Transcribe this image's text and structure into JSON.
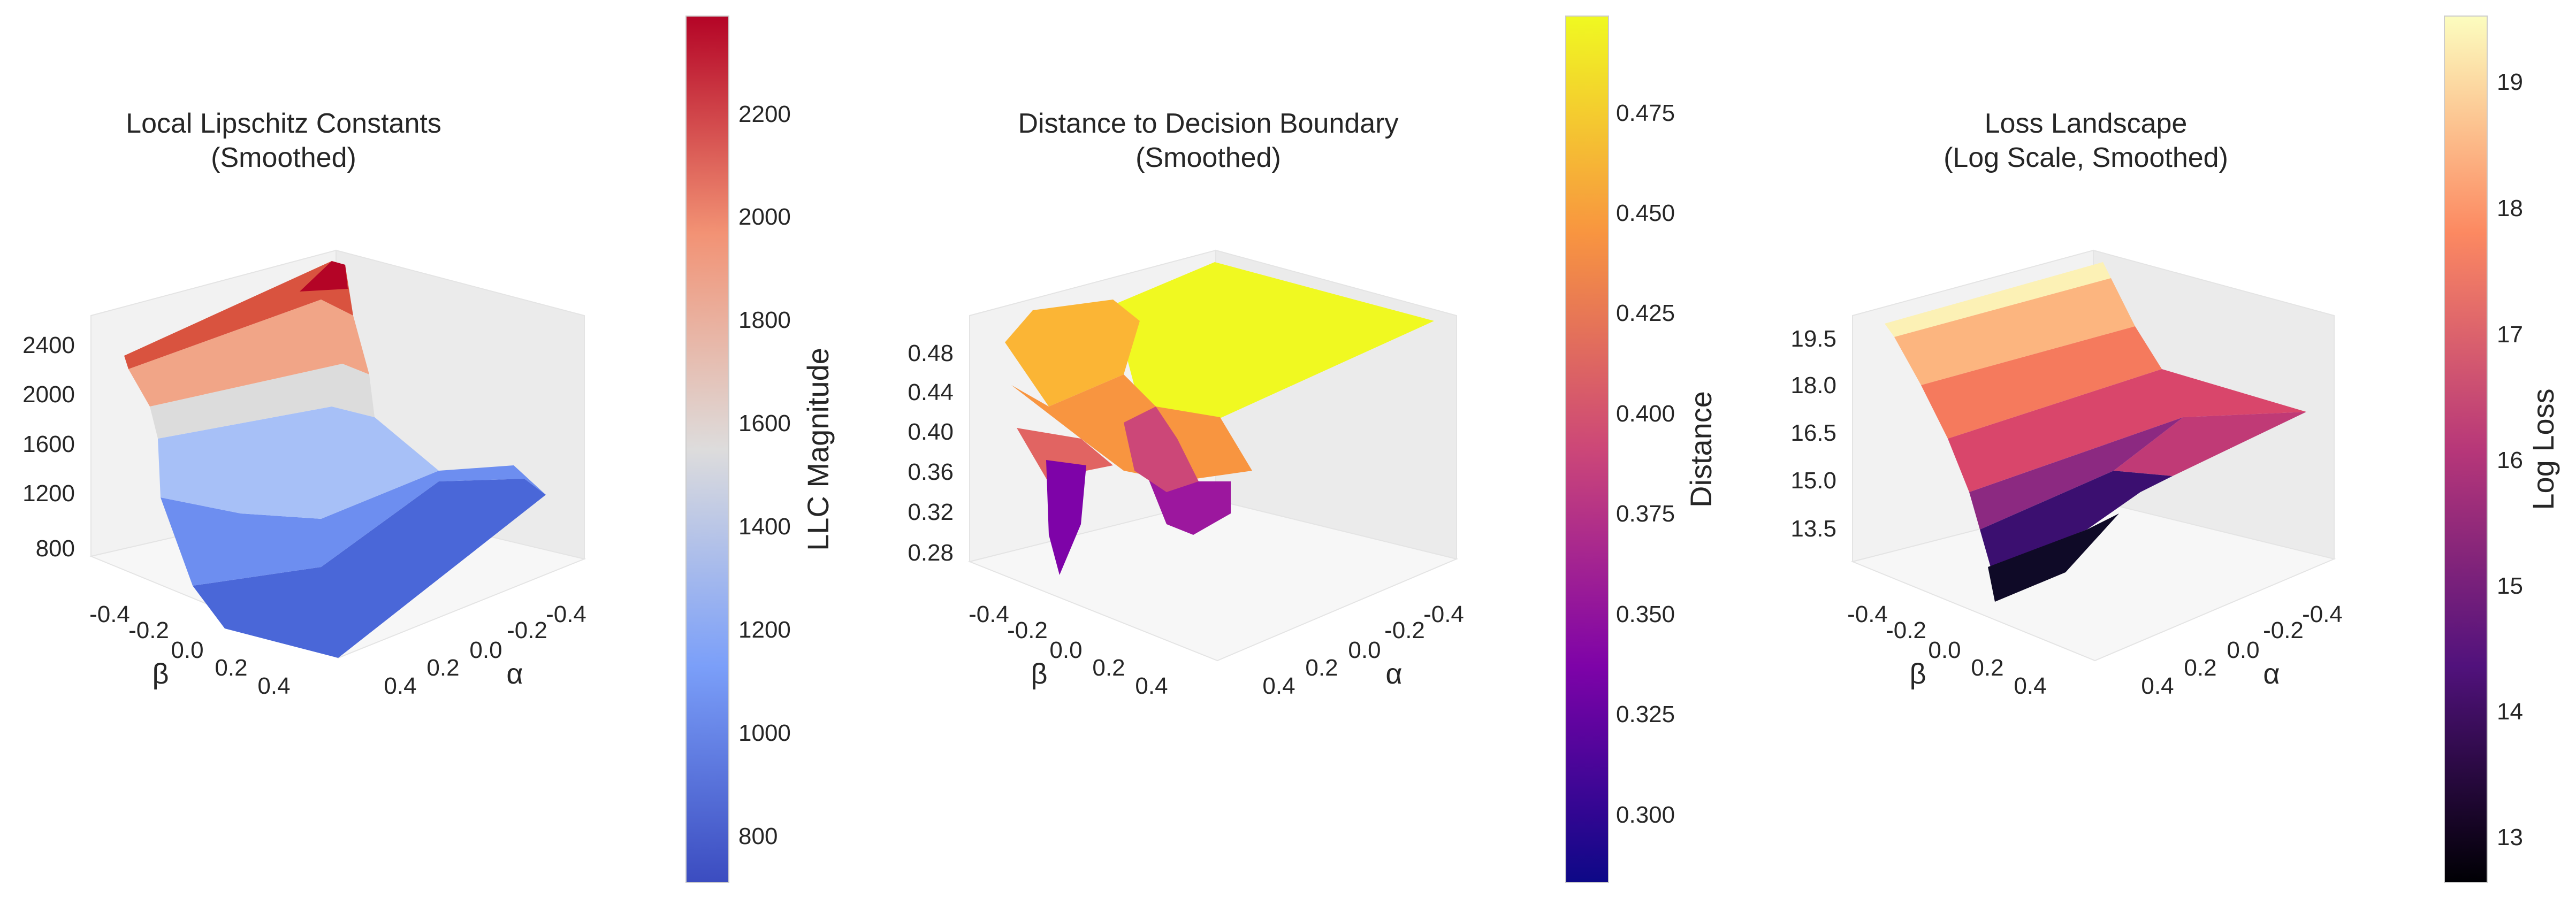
{
  "chart_data": [
    {
      "type": "surface3d",
      "title": "Local Lipschitz Constants\n(Smoothed)",
      "xlabel": "α",
      "ylabel": "β",
      "x_ticks": [
        "-0.4",
        "-0.2",
        "0.0",
        "0.2",
        "0.4"
      ],
      "y_ticks": [
        "-0.4",
        "-0.2",
        "0.0",
        "0.2",
        "0.4"
      ],
      "z_ticks": [
        "800",
        "1200",
        "1600",
        "2000",
        "2400"
      ],
      "x_range": [
        -0.5,
        0.5
      ],
      "y_range": [
        -0.5,
        0.5
      ],
      "zlim": [
        600,
        2600
      ],
      "surface": {
        "y_grid": [
          -0.5,
          -0.3,
          -0.1,
          0.1,
          0.3,
          0.5
        ],
        "profile_beta": [
          -0.5,
          -0.3,
          -0.15,
          -0.05,
          0.05,
          0.2,
          0.35,
          0.5
        ],
        "profile_llc_at_alpha_min": [
          2250,
          1950,
          1450,
          950,
          780,
          720,
          690,
          700
        ],
        "profile_llc_at_alpha_max": [
          2400,
          2100,
          1550,
          1000,
          820,
          760,
          740,
          760
        ]
      },
      "colorbar": {
        "label": "LLC Magnitude",
        "cmap": "coolwarm",
        "range": [
          700,
          2380
        ],
        "ticks": [
          "800",
          "1000",
          "1200",
          "1400",
          "1600",
          "1800",
          "2000",
          "2200"
        ]
      }
    },
    {
      "type": "surface3d",
      "title": "Distance to Decision Boundary\n(Smoothed)",
      "xlabel": "α",
      "ylabel": "β",
      "x_ticks": [
        "-0.4",
        "-0.2",
        "0.0",
        "0.2",
        "0.4"
      ],
      "y_ticks": [
        "-0.4",
        "-0.2",
        "0.0",
        "0.2",
        "0.4"
      ],
      "z_ticks": [
        "0.28",
        "0.32",
        "0.36",
        "0.40",
        "0.44",
        "0.48"
      ],
      "x_range": [
        -0.5,
        0.5
      ],
      "y_range": [
        -0.5,
        0.5
      ],
      "zlim": [
        0.27,
        0.5
      ],
      "surface": {
        "description_values": "plateau near 0.495 for beta > 0.1, dips to about 0.28 near alpha 0.3 beta -0.3 and alpha 0.1 beta -0.05",
        "plateau": 0.495,
        "minimum": 0.28
      },
      "colorbar": {
        "label": "Distance",
        "cmap": "plasma",
        "range": [
          0.282,
          0.497
        ],
        "ticks": [
          "0.300",
          "0.325",
          "0.350",
          "0.375",
          "0.400",
          "0.425",
          "0.450",
          "0.475"
        ]
      }
    },
    {
      "type": "surface3d",
      "title": "Loss Landscape\n(Log Scale, Smoothed)",
      "xlabel": "α",
      "ylabel": "β",
      "x_ticks": [
        "-0.4",
        "-0.2",
        "0.0",
        "0.2",
        "0.4"
      ],
      "y_ticks": [
        "-0.4",
        "-0.2",
        "0.0",
        "0.2",
        "0.4"
      ],
      "z_ticks": [
        "13.5",
        "15.0",
        "16.5",
        "18.0",
        "19.5"
      ],
      "x_range": [
        -0.5,
        0.5
      ],
      "y_range": [
        -0.5,
        0.5
      ],
      "zlim": [
        12.3,
        20.0
      ],
      "surface": {
        "profile_beta": [
          -0.5,
          -0.3,
          -0.15,
          -0.05,
          0.05,
          0.2,
          0.35,
          0.5
        ],
        "profile_loss_at_alpha_min": [
          19.6,
          18.6,
          16.2,
          13.8,
          12.8,
          13.2,
          14.0,
          15.0
        ],
        "profile_loss_at_alpha_max": [
          19.8,
          19.0,
          17.5,
          16.2,
          15.6,
          15.8,
          16.1,
          16.4
        ]
      },
      "colorbar": {
        "label": "Log Loss",
        "cmap": "magma",
        "range": [
          12.6,
          19.5
        ],
        "ticks": [
          "13",
          "14",
          "15",
          "16",
          "17",
          "18",
          "19"
        ]
      }
    }
  ]
}
